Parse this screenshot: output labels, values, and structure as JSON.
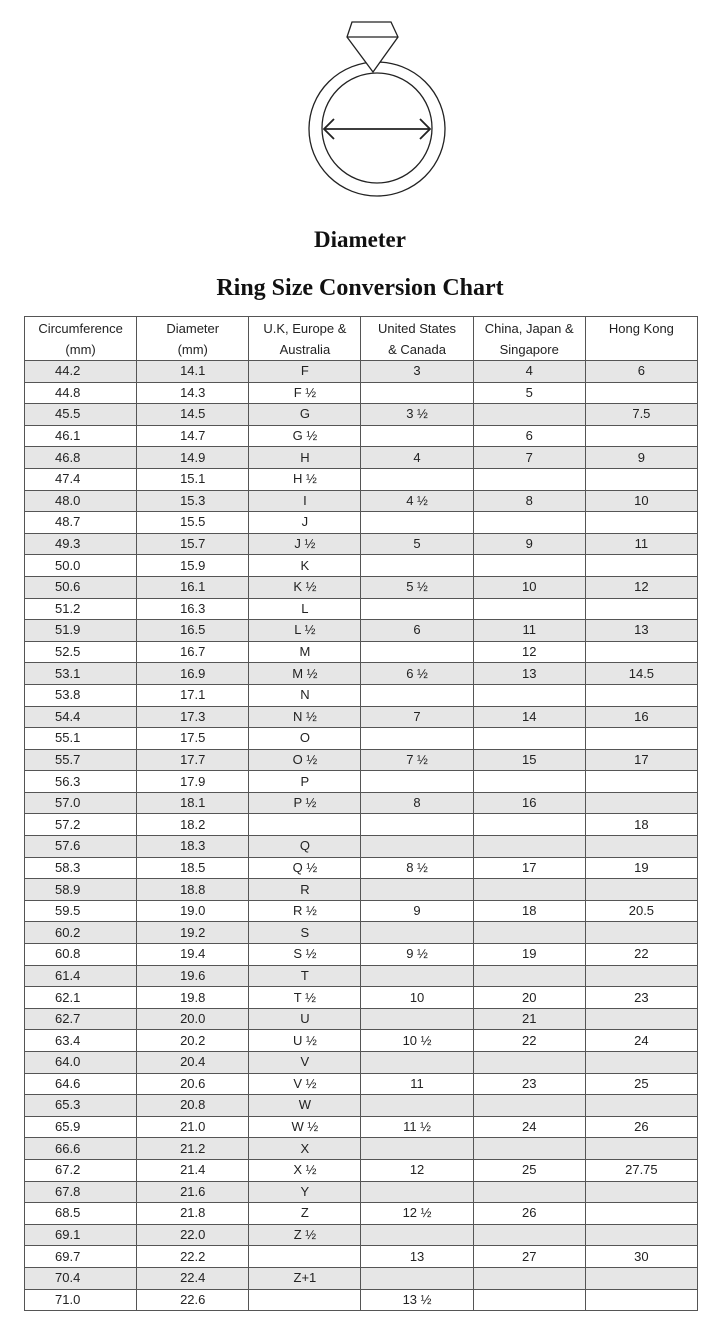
{
  "figure": {
    "label": "Diameter",
    "icon": "ring-diameter-icon"
  },
  "title": "Ring Size Conversion Chart",
  "columns": [
    [
      "Circumference",
      "(mm)"
    ],
    [
      "Diameter",
      "(mm)"
    ],
    [
      "U.K, Europe &",
      "Australia"
    ],
    [
      "United States",
      "& Canada"
    ],
    [
      "China, Japan &",
      "Singapore"
    ],
    [
      "Hong Kong",
      ""
    ]
  ],
  "rows": [
    [
      "44.2",
      "14.1",
      "F",
      "3",
      "4",
      "6"
    ],
    [
      "44.8",
      "14.3",
      "F ½",
      "",
      "5",
      ""
    ],
    [
      "45.5",
      "14.5",
      "G",
      "3 ½",
      "",
      "7.5"
    ],
    [
      "46.1",
      "14.7",
      "G ½",
      "",
      "6",
      ""
    ],
    [
      "46.8",
      "14.9",
      "H",
      "4",
      "7",
      "9"
    ],
    [
      "47.4",
      "15.1",
      "H ½",
      "",
      "",
      ""
    ],
    [
      "48.0",
      "15.3",
      "I",
      "4 ½",
      "8",
      "10"
    ],
    [
      "48.7",
      "15.5",
      "J",
      "",
      "",
      ""
    ],
    [
      "49.3",
      "15.7",
      "J ½",
      "5",
      "9",
      "11"
    ],
    [
      "50.0",
      "15.9",
      "K",
      "",
      "",
      ""
    ],
    [
      "50.6",
      "16.1",
      "K ½",
      "5 ½",
      "10",
      "12"
    ],
    [
      "51.2",
      "16.3",
      "L",
      "",
      "",
      ""
    ],
    [
      "51.9",
      "16.5",
      "L ½",
      "6",
      "11",
      "13"
    ],
    [
      "52.5",
      "16.7",
      "M",
      "",
      "12",
      ""
    ],
    [
      "53.1",
      "16.9",
      "M ½",
      "6 ½",
      "13",
      "14.5"
    ],
    [
      "53.8",
      "17.1",
      "N",
      "",
      "",
      ""
    ],
    [
      "54.4",
      "17.3",
      "N ½",
      "7",
      "14",
      "16"
    ],
    [
      "55.1",
      "17.5",
      "O",
      "",
      "",
      ""
    ],
    [
      "55.7",
      "17.7",
      "O ½",
      "7 ½",
      "15",
      "17"
    ],
    [
      "56.3",
      "17.9",
      "P",
      "",
      "",
      ""
    ],
    [
      "57.0",
      "18.1",
      "P ½",
      "8",
      "16",
      ""
    ],
    [
      "57.2",
      "18.2",
      "",
      "",
      "",
      "18"
    ],
    [
      "57.6",
      "18.3",
      "Q",
      "",
      "",
      ""
    ],
    [
      "58.3",
      "18.5",
      "Q ½",
      "8 ½",
      "17",
      "19"
    ],
    [
      "58.9",
      "18.8",
      "R",
      "",
      "",
      ""
    ],
    [
      "59.5",
      "19.0",
      "R ½",
      "9",
      "18",
      "20.5"
    ],
    [
      "60.2",
      "19.2",
      "S",
      "",
      "",
      ""
    ],
    [
      "60.8",
      "19.4",
      "S ½",
      "9 ½",
      "19",
      "22"
    ],
    [
      "61.4",
      "19.6",
      "T",
      "",
      "",
      ""
    ],
    [
      "62.1",
      "19.8",
      "T ½",
      "10",
      "20",
      "23"
    ],
    [
      "62.7",
      "20.0",
      "U",
      "",
      "21",
      ""
    ],
    [
      "63.4",
      "20.2",
      "U ½",
      "10 ½",
      "22",
      "24"
    ],
    [
      "64.0",
      "20.4",
      "V",
      "",
      "",
      ""
    ],
    [
      "64.6",
      "20.6",
      "V ½",
      "11",
      "23",
      "25"
    ],
    [
      "65.3",
      "20.8",
      "W",
      "",
      "",
      ""
    ],
    [
      "65.9",
      "21.0",
      "W ½",
      "11 ½",
      "24",
      "26"
    ],
    [
      "66.6",
      "21.2",
      "X",
      "",
      "",
      ""
    ],
    [
      "67.2",
      "21.4",
      "X ½",
      "12",
      "25",
      "27.75"
    ],
    [
      "67.8",
      "21.6",
      "Y",
      "",
      "",
      ""
    ],
    [
      "68.5",
      "21.8",
      "Z",
      "12 ½",
      "26",
      ""
    ],
    [
      "69.1",
      "22.0",
      "Z ½",
      "",
      "",
      ""
    ],
    [
      "69.7",
      "22.2",
      "",
      "13",
      "27",
      "30"
    ],
    [
      "70.4",
      "22.4",
      "Z+1",
      "",
      "",
      ""
    ],
    [
      "71.0",
      "22.6",
      "",
      "13 ½",
      "",
      ""
    ]
  ]
}
